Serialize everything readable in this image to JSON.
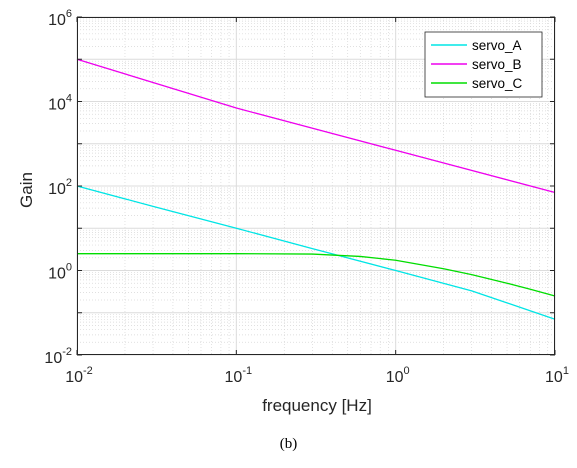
{
  "chart_data": {
    "type": "line",
    "xlabel": "frequency [Hz]",
    "ylabel": "Gain",
    "x_scale": "log",
    "y_scale": "log",
    "xlim": [
      0.01,
      10
    ],
    "ylim": [
      0.01,
      1000000
    ],
    "x_ticks": [
      {
        "base": "10",
        "exp": "-2"
      },
      {
        "base": "10",
        "exp": "-1"
      },
      {
        "base": "10",
        "exp": "0"
      },
      {
        "base": "10",
        "exp": "1"
      }
    ],
    "y_ticks": [
      {
        "base": "10",
        "exp": "-2"
      },
      {
        "base": "10",
        "exp": "0"
      },
      {
        "base": "10",
        "exp": "2"
      },
      {
        "base": "10",
        "exp": "4"
      },
      {
        "base": "10",
        "exp": "6"
      }
    ],
    "grid": true,
    "minor_grid": true,
    "legend_position": "top-right",
    "series": [
      {
        "name": "servo_A",
        "color": "#00e5e5",
        "x": [
          0.01,
          0.03,
          0.1,
          0.3,
          1,
          3,
          10
        ],
        "y": [
          100,
          33,
          10,
          3.3,
          1,
          0.33,
          0.07
        ]
      },
      {
        "name": "servo_B",
        "color": "#ee00ee",
        "x": [
          0.01,
          0.1,
          1,
          10
        ],
        "y": [
          100000,
          7000,
          700,
          70
        ]
      },
      {
        "name": "servo_C",
        "color": "#00dd00",
        "x": [
          0.01,
          0.03,
          0.1,
          0.3,
          0.6,
          1,
          2,
          3,
          5,
          7,
          10
        ],
        "y": [
          2.5,
          2.5,
          2.5,
          2.45,
          2.15,
          1.75,
          1.1,
          0.8,
          0.5,
          0.36,
          0.25
        ]
      }
    ]
  },
  "caption": "(b)"
}
